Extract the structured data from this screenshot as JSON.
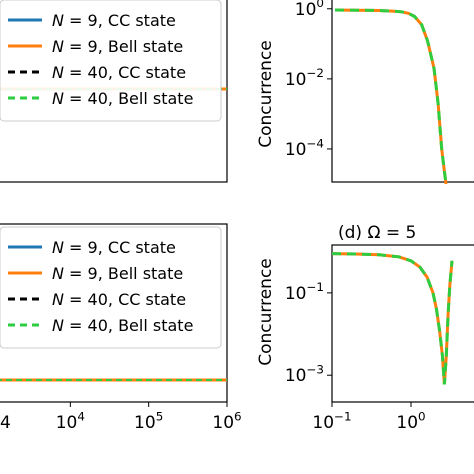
{
  "chart_data": [
    {
      "panel": "top-left",
      "type": "line",
      "xscale": "log",
      "legend": {
        "placement": "top-right",
        "entries": [
          {
            "prefix": "N",
            "rest": " = 9, CC state",
            "color": "#1f77b4",
            "dashed": false
          },
          {
            "prefix": "N",
            "rest": " = 9, Bell state",
            "color": "#ff7f0e",
            "dashed": false
          },
          {
            "prefix": "N",
            "rest": " = 40, CC state",
            "color": "#000000",
            "dashed": true
          },
          {
            "prefix": "N",
            "rest": " = 40, Bell state",
            "color": "#2ecc40",
            "dashed": true
          }
        ]
      },
      "series": [
        {
          "name": "N = 9, CC state",
          "x": [
            1,
            1000000
          ],
          "y": [
            0.1,
            0.1
          ]
        },
        {
          "name": "N = 9, Bell state",
          "x": [
            1,
            1000000
          ],
          "y": [
            0.1,
            0.1
          ]
        },
        {
          "name": "N = 40, CC state",
          "x": [
            1,
            1000000
          ],
          "y": [
            0.1,
            0.1
          ]
        },
        {
          "name": "N = 40, Bell state",
          "x": [
            1,
            1000000
          ],
          "y": [
            0.1,
            0.1
          ]
        }
      ]
    },
    {
      "panel": "top-right",
      "type": "line",
      "xscale": "log",
      "yscale": "log",
      "ylabel": "Concurrence",
      "ylim": [
        1e-05,
        1.2
      ],
      "yticks": [
        {
          "value": 1,
          "base": "10",
          "exp": "0"
        },
        {
          "value": 0.01,
          "base": "10",
          "exp": "−2"
        },
        {
          "value": 0.0001,
          "base": "10",
          "exp": "−4"
        }
      ],
      "x": [
        0.1,
        0.2,
        0.4,
        0.6,
        0.8,
        1.0,
        1.2,
        1.5,
        1.8,
        2.2,
        2.5,
        2.8,
        3.0,
        3.2
      ],
      "series": [
        {
          "name": "N = 9, Bell state",
          "color": "#ff7f0e",
          "y": [
            0.92,
            0.91,
            0.89,
            0.86,
            0.82,
            0.74,
            0.6,
            0.35,
            0.12,
            0.02,
            0.002,
            0.0001,
            3e-05,
            1e-05
          ]
        },
        {
          "name": "N = 40, Bell state",
          "color": "#2ecc40",
          "y": [
            0.92,
            0.91,
            0.89,
            0.86,
            0.82,
            0.74,
            0.6,
            0.35,
            0.12,
            0.02,
            0.002,
            0.0001,
            3e-05,
            1e-05
          ]
        }
      ]
    },
    {
      "panel": "bottom-left",
      "type": "line",
      "xscale": "log",
      "xlim": [
        1000,
        1000000
      ],
      "xticks": [
        {
          "value": 10000,
          "base": "10",
          "exp": "4"
        },
        {
          "value": 100000,
          "base": "10",
          "exp": "5"
        },
        {
          "value": 1000000,
          "base": "10",
          "exp": "6"
        }
      ],
      "legend": {
        "placement": "top-right",
        "entries": [
          {
            "prefix": "N",
            "rest": " = 9, CC state",
            "color": "#1f77b4",
            "dashed": false
          },
          {
            "prefix": "N",
            "rest": " = 9, Bell state",
            "color": "#ff7f0e",
            "dashed": false
          },
          {
            "prefix": "N",
            "rest": " = 40, CC state",
            "color": "#000000",
            "dashed": true
          },
          {
            "prefix": "N",
            "rest": " = 40, Bell state",
            "color": "#2ecc40",
            "dashed": true
          }
        ]
      },
      "series": [
        {
          "name": "N = 9, CC state",
          "x": [
            1000,
            1000000
          ],
          "y": [
            0.05,
            0.05
          ]
        },
        {
          "name": "N = 9, Bell state",
          "x": [
            1000,
            1000000
          ],
          "y": [
            0.05,
            0.05
          ]
        },
        {
          "name": "N = 40, CC state",
          "x": [
            1000,
            1000000
          ],
          "y": [
            0.05,
            0.05
          ]
        },
        {
          "name": "N = 40, Bell state",
          "x": [
            1000,
            1000000
          ],
          "y": [
            0.05,
            0.05
          ]
        }
      ]
    },
    {
      "panel": "bottom-right",
      "title": "(d) Ω = 5",
      "type": "line",
      "xscale": "log",
      "yscale": "log",
      "ylabel": "Concurrence",
      "xlim": [
        0.1,
        3.3
      ],
      "ylim": [
        0.0002,
        1.3
      ],
      "xticks": [
        {
          "value": 0.1,
          "base": "10",
          "exp": "−1"
        },
        {
          "value": 1,
          "base": "10",
          "exp": "0"
        }
      ],
      "yticks": [
        {
          "value": 0.1,
          "base": "10",
          "exp": "−1"
        },
        {
          "value": 0.001,
          "base": "10",
          "exp": "−3"
        }
      ],
      "x": [
        0.1,
        0.2,
        0.4,
        0.7,
        1.0,
        1.3,
        1.6,
        1.9,
        2.1,
        2.3,
        2.5,
        2.65,
        2.8,
        2.95,
        3.1,
        3.3
      ],
      "series": [
        {
          "name": "N = 9, Bell state",
          "color": "#ff7f0e",
          "y": [
            0.9,
            0.88,
            0.84,
            0.75,
            0.6,
            0.42,
            0.24,
            0.1,
            0.04,
            0.012,
            0.003,
            0.0006,
            0.003,
            0.03,
            0.15,
            0.6
          ]
        },
        {
          "name": "N = 40, Bell state",
          "color": "#2ecc40",
          "y": [
            0.9,
            0.88,
            0.84,
            0.75,
            0.6,
            0.42,
            0.24,
            0.1,
            0.04,
            0.012,
            0.003,
            0.0006,
            0.003,
            0.03,
            0.15,
            0.6
          ]
        }
      ]
    }
  ]
}
